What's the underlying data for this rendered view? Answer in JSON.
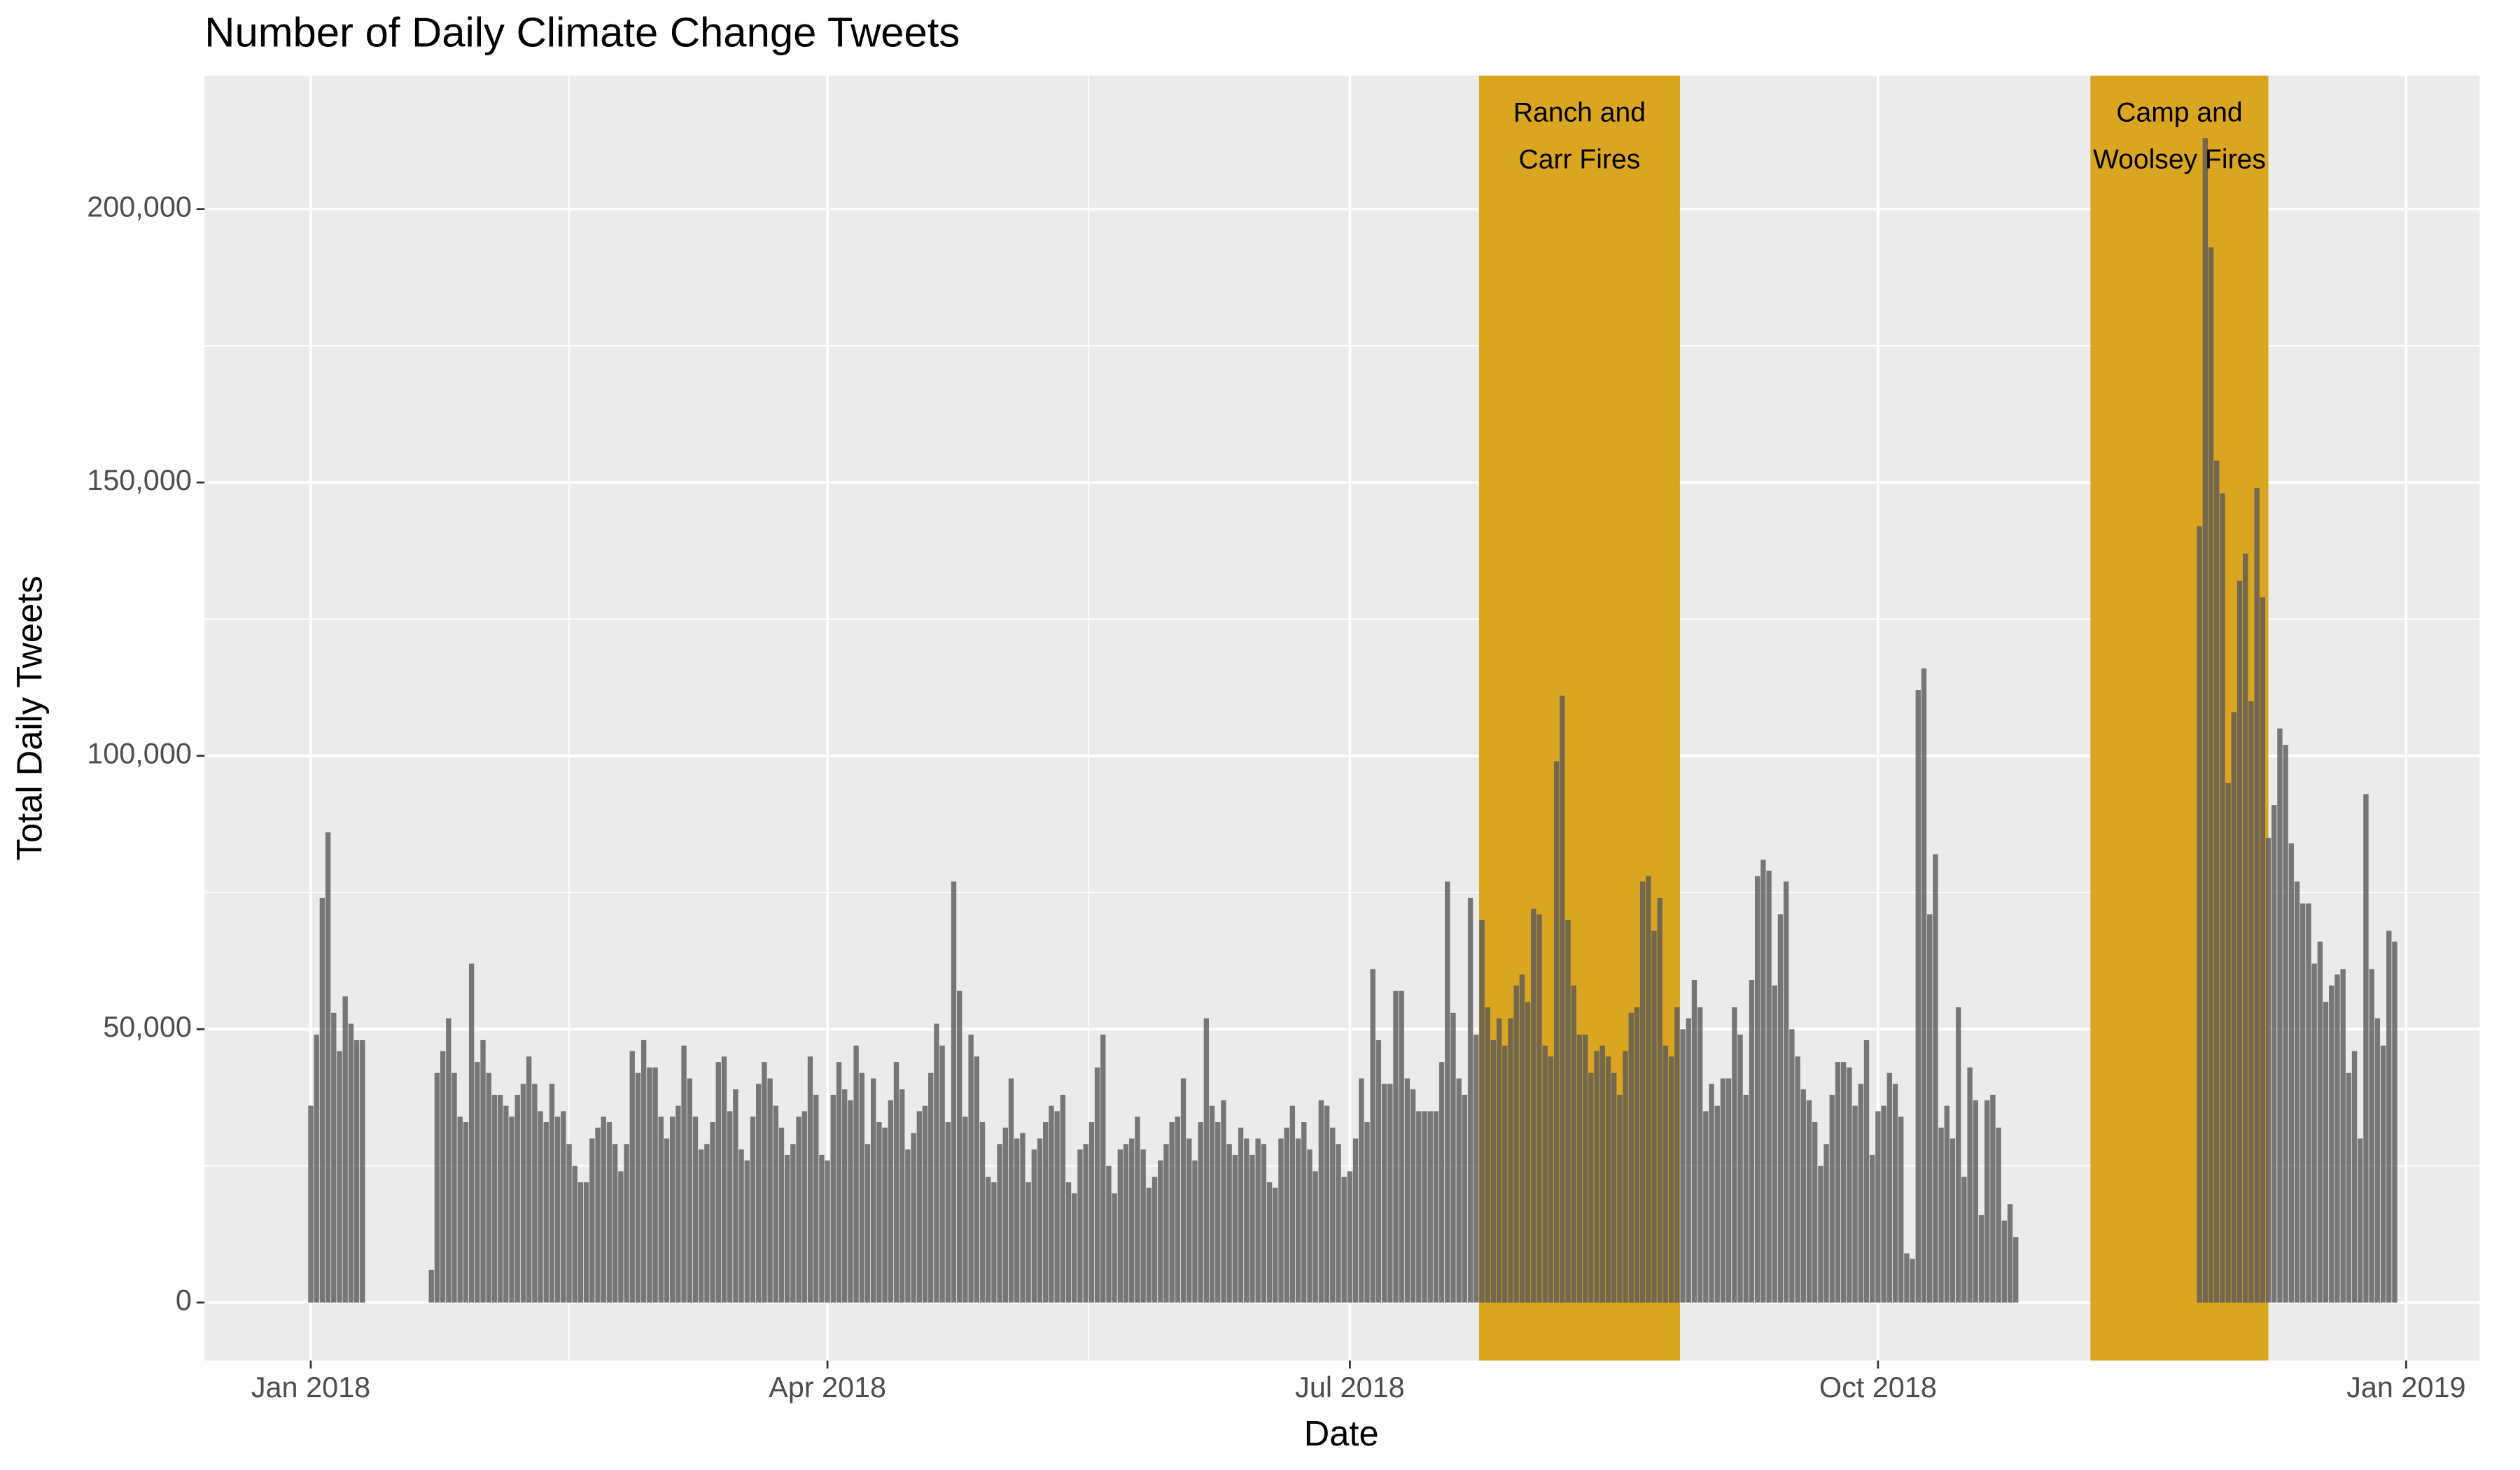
{
  "chart_data": {
    "type": "bar",
    "title": "Number of Daily Climate Change Tweets",
    "x_label": "Date",
    "y_label": "Total Daily Tweets",
    "xlim": [
      -18.5,
      377.8
    ],
    "xticks": [
      {
        "value": 0,
        "label": "Jan 2018"
      },
      {
        "value": 90,
        "label": "Apr 2018"
      },
      {
        "value": 181,
        "label": "Jul 2018"
      },
      {
        "value": 273,
        "label": "Oct 2018"
      },
      {
        "value": 365,
        "label": "Jan 2019"
      }
    ],
    "ylim": [
      -10600,
      224400
    ],
    "yticks": [
      {
        "value": 0,
        "label": "0"
      },
      {
        "value": 50000,
        "label": "50,000"
      },
      {
        "value": 100000,
        "label": "100,000"
      },
      {
        "value": 150000,
        "label": "150,000"
      },
      {
        "value": 200000,
        "label": "200,000"
      }
    ],
    "grid": true,
    "color": "#595959",
    "annotations": [
      {
        "text": [
          "Ranch and",
          "Carr Fires"
        ],
        "xmin": 203.5,
        "xmax": 238.5,
        "color": "#DAA520"
      },
      {
        "text": [
          "Camp and",
          "Woolsey Fires"
        ],
        "xmin": 310,
        "xmax": 341,
        "color": "#DAA520"
      }
    ],
    "x": [
      0,
      1,
      2,
      3,
      4,
      5,
      6,
      7,
      8,
      9,
      21,
      22,
      23,
      24,
      25,
      26,
      27,
      28,
      29,
      30,
      31,
      32,
      33,
      34,
      35,
      36,
      37,
      38,
      39,
      40,
      41,
      42,
      43,
      44,
      45,
      46,
      47,
      48,
      49,
      50,
      51,
      52,
      53,
      54,
      55,
      56,
      57,
      58,
      59,
      60,
      61,
      62,
      63,
      64,
      65,
      66,
      67,
      68,
      69,
      70,
      71,
      72,
      73,
      74,
      75,
      76,
      77,
      78,
      79,
      80,
      81,
      82,
      83,
      84,
      85,
      86,
      87,
      88,
      89,
      90,
      91,
      92,
      93,
      94,
      95,
      96,
      97,
      98,
      99,
      100,
      101,
      102,
      103,
      104,
      105,
      106,
      107,
      108,
      109,
      110,
      111,
      112,
      113,
      114,
      115,
      116,
      117,
      118,
      119,
      120,
      121,
      122,
      123,
      124,
      125,
      126,
      127,
      128,
      129,
      130,
      131,
      132,
      133,
      134,
      135,
      136,
      137,
      138,
      139,
      140,
      141,
      142,
      143,
      144,
      145,
      146,
      147,
      148,
      149,
      150,
      151,
      152,
      153,
      154,
      155,
      156,
      157,
      158,
      159,
      160,
      161,
      162,
      163,
      164,
      165,
      166,
      167,
      168,
      169,
      170,
      171,
      172,
      173,
      174,
      175,
      176,
      177,
      178,
      179,
      180,
      181,
      182,
      183,
      184,
      185,
      186,
      187,
      188,
      189,
      190,
      191,
      192,
      193,
      194,
      195,
      196,
      197,
      198,
      199,
      200,
      201,
      202,
      203,
      204,
      205,
      206,
      207,
      208,
      209,
      210,
      211,
      212,
      213,
      214,
      215,
      216,
      217,
      218,
      219,
      220,
      221,
      222,
      223,
      224,
      225,
      226,
      227,
      228,
      229,
      230,
      231,
      232,
      233,
      234,
      235,
      236,
      237,
      238,
      239,
      240,
      241,
      242,
      243,
      244,
      245,
      246,
      247,
      248,
      249,
      250,
      251,
      252,
      253,
      254,
      255,
      256,
      257,
      258,
      259,
      260,
      261,
      262,
      263,
      264,
      265,
      266,
      267,
      268,
      269,
      270,
      271,
      272,
      273,
      274,
      275,
      276,
      277,
      278,
      279,
      280,
      281,
      282,
      283,
      284,
      285,
      286,
      287,
      288,
      289,
      290,
      291,
      292,
      293,
      294,
      295,
      296,
      297,
      329,
      330,
      331,
      332,
      333,
      334,
      335,
      336,
      337,
      338,
      339,
      340,
      341,
      342,
      343,
      344,
      345,
      346,
      347,
      348,
      349,
      350,
      351,
      352,
      353,
      354,
      355,
      356,
      357,
      358,
      359,
      360,
      361,
      362,
      363
    ],
    "values": [
      36000,
      49000,
      74000,
      86000,
      53000,
      46000,
      56000,
      51000,
      48000,
      48000,
      6000,
      42000,
      46000,
      52000,
      42000,
      34000,
      33000,
      62000,
      44000,
      48000,
      42000,
      38000,
      38000,
      36000,
      34000,
      38000,
      40000,
      45000,
      40000,
      35000,
      33000,
      40000,
      34000,
      35000,
      29000,
      25000,
      22000,
      22000,
      30000,
      32000,
      34000,
      33000,
      29000,
      24000,
      29000,
      46000,
      42000,
      48000,
      43000,
      43000,
      34000,
      30000,
      34000,
      36000,
      47000,
      41000,
      34000,
      28000,
      29000,
      33000,
      44000,
      45000,
      35000,
      39000,
      28000,
      26000,
      34000,
      40000,
      44000,
      41000,
      36000,
      32000,
      27000,
      29000,
      34000,
      35000,
      45000,
      38000,
      27000,
      26000,
      38000,
      44000,
      39000,
      37000,
      47000,
      42000,
      29000,
      41000,
      33000,
      32000,
      37000,
      44000,
      39000,
      28000,
      31000,
      35000,
      36000,
      42000,
      51000,
      47000,
      33000,
      77000,
      57000,
      34000,
      49000,
      45000,
      33000,
      23000,
      22000,
      29000,
      32000,
      41000,
      30000,
      31000,
      22000,
      28000,
      30000,
      33000,
      36000,
      35000,
      38000,
      22000,
      20000,
      28000,
      29000,
      33000,
      43000,
      49000,
      25000,
      20000,
      28000,
      29000,
      30000,
      34000,
      28000,
      21000,
      23000,
      26000,
      29000,
      33000,
      34000,
      41000,
      30000,
      26000,
      33000,
      52000,
      36000,
      33000,
      37000,
      29000,
      27000,
      32000,
      30000,
      27000,
      30000,
      29000,
      22000,
      21000,
      30000,
      32000,
      36000,
      30000,
      33000,
      28000,
      24000,
      37000,
      36000,
      32000,
      29000,
      23000,
      24000,
      30000,
      41000,
      33000,
      61000,
      48000,
      40000,
      40000,
      57000,
      57000,
      41000,
      39000,
      35000,
      35000,
      35000,
      35000,
      44000,
      77000,
      53000,
      41000,
      38000,
      74000,
      49000,
      70000,
      54000,
      48000,
      52000,
      47000,
      52000,
      58000,
      60000,
      55000,
      72000,
      71000,
      47000,
      45000,
      99000,
      111000,
      70000,
      58000,
      49000,
      49000,
      42000,
      46000,
      47000,
      45000,
      42000,
      38000,
      46000,
      53000,
      54000,
      77000,
      78000,
      68000,
      74000,
      47000,
      45000,
      54000,
      50000,
      52000,
      59000,
      54000,
      35000,
      40000,
      36000,
      41000,
      41000,
      54000,
      49000,
      38000,
      59000,
      78000,
      81000,
      79000,
      58000,
      71000,
      77000,
      50000,
      45000,
      39000,
      37000,
      33000,
      25000,
      29000,
      38000,
      44000,
      44000,
      43000,
      36000,
      40000,
      48000,
      27000,
      35000,
      36000,
      42000,
      40000,
      34000,
      9000,
      8000,
      112000,
      116000,
      71000,
      82000,
      32000,
      36000,
      30000,
      54000,
      23000,
      43000,
      37000,
      16000,
      37000,
      38000,
      32000,
      15000,
      18000,
      12000,
      142000,
      213000,
      193000,
      154000,
      148000,
      95000,
      108000,
      132000,
      137000,
      110000,
      149000,
      129000,
      85000,
      91000,
      105000,
      102000,
      84000,
      77000,
      73000,
      73000,
      62000,
      66000,
      55000,
      58000,
      60000,
      61000,
      42000,
      46000,
      30000,
      93000,
      61000,
      52000,
      47000,
      68000,
      66000
    ]
  }
}
